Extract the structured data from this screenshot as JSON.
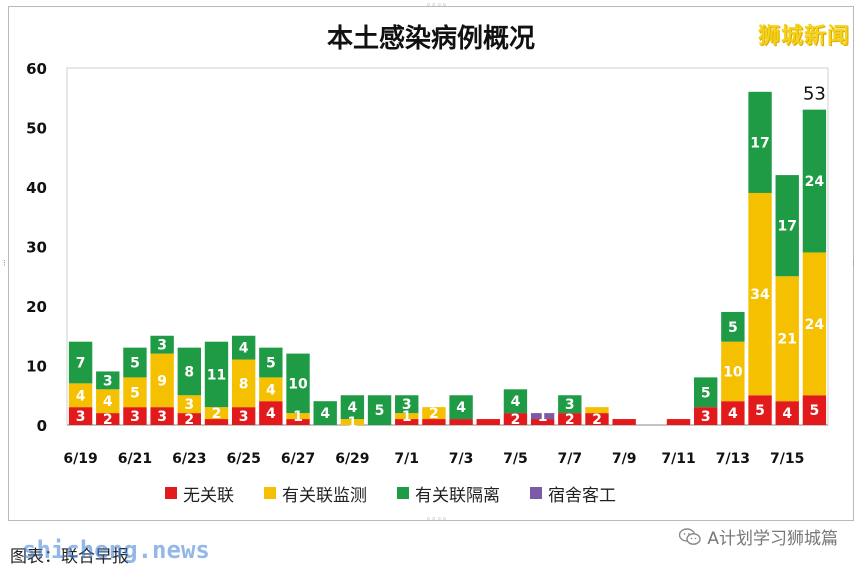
{
  "brand": "狮城新闻",
  "caption": "图表：联合早报",
  "watermark": "shicheng.news",
  "wechat_label": "A计划学习狮城篇",
  "chart_data": {
    "type": "bar",
    "stacked": true,
    "title": "本土感染病例概况",
    "ylim": [
      0,
      60
    ],
    "yticks": [
      0,
      10,
      20,
      30,
      40,
      50,
      60
    ],
    "grid": false,
    "legend_position": "bottom",
    "categories": [
      "6/19",
      "6/20",
      "6/21",
      "6/22",
      "6/23",
      "6/24",
      "6/25",
      "6/26",
      "6/27",
      "6/28",
      "6/29",
      "6/30",
      "7/1",
      "7/2",
      "7/3",
      "7/4",
      "7/5",
      "7/6",
      "7/7",
      "7/8",
      "7/9",
      "7/10",
      "7/11",
      "7/12",
      "7/13",
      "7/14",
      "7/15",
      "7/16"
    ],
    "xtick_labels": [
      "6/19",
      "",
      "6/21",
      "",
      "6/23",
      "",
      "6/25",
      "",
      "6/27",
      "",
      "6/29",
      "",
      "7/1",
      "",
      "7/3",
      "",
      "7/5",
      "",
      "7/7",
      "",
      "7/9",
      "",
      "7/11",
      "",
      "7/13",
      "",
      "7/15",
      ""
    ],
    "series": [
      {
        "name": "无关联",
        "color": "#e31a1c",
        "values": [
          3,
          2,
          3,
          3,
          2,
          1,
          3,
          4,
          1,
          0,
          0,
          0,
          1,
          1,
          1,
          1,
          2,
          1,
          2,
          2,
          1,
          0,
          1,
          3,
          4,
          5,
          4,
          5
        ],
        "labels": [
          "3",
          "2",
          "3",
          "3",
          "2",
          "",
          "3",
          "4",
          "",
          "",
          "",
          "",
          "",
          "",
          "",
          "",
          "2",
          "",
          "2",
          "2",
          "",
          "",
          "",
          "3",
          "4",
          "5",
          "4",
          "5"
        ]
      },
      {
        "name": "有关联监测",
        "color": "#f5c000",
        "values": [
          4,
          4,
          5,
          9,
          3,
          2,
          8,
          4,
          1,
          0,
          1,
          0,
          1,
          2,
          0,
          0,
          0,
          0,
          0,
          1,
          0,
          0,
          0,
          0,
          10,
          34,
          21,
          24
        ],
        "labels": [
          "4",
          "4",
          "5",
          "9",
          "3",
          "2",
          "8",
          "4",
          "1",
          "",
          "1",
          "",
          "1",
          "2",
          "",
          "",
          "",
          "",
          "",
          "",
          "",
          "",
          "",
          "",
          "10",
          "34",
          "21",
          "24"
        ]
      },
      {
        "name": "有关联隔离",
        "color": "#1f9a45",
        "values": [
          7,
          3,
          5,
          3,
          8,
          11,
          4,
          5,
          10,
          4,
          4,
          5,
          3,
          0,
          4,
          0,
          4,
          0,
          3,
          0,
          0,
          0,
          0,
          5,
          5,
          17,
          17,
          24
        ],
        "labels": [
          "7",
          "3",
          "5",
          "3",
          "8",
          "11",
          "4",
          "5",
          "10",
          "4",
          "4",
          "5",
          "3",
          "",
          "4",
          "",
          "4",
          "",
          "3",
          "",
          "",
          "",
          "",
          "5",
          "5",
          "17",
          "17",
          "24"
        ]
      },
      {
        "name": "宿舍客工",
        "color": "#7b5aa6",
        "values": [
          0,
          0,
          0,
          0,
          0,
          0,
          0,
          0,
          0,
          0,
          0,
          0,
          0,
          0,
          0,
          0,
          0,
          1,
          0,
          0,
          0,
          0,
          0,
          0,
          0,
          0,
          0,
          0
        ],
        "labels": [
          "",
          "",
          "",
          "",
          "",
          "",
          "",
          "",
          "",
          "",
          "",
          "",
          "",
          "",
          "",
          "",
          "",
          "1",
          "",
          "",
          "",
          "",
          "",
          "",
          "",
          "",
          "",
          ""
        ]
      }
    ],
    "annotations": [
      {
        "category": "7/16",
        "text": "53"
      }
    ]
  }
}
